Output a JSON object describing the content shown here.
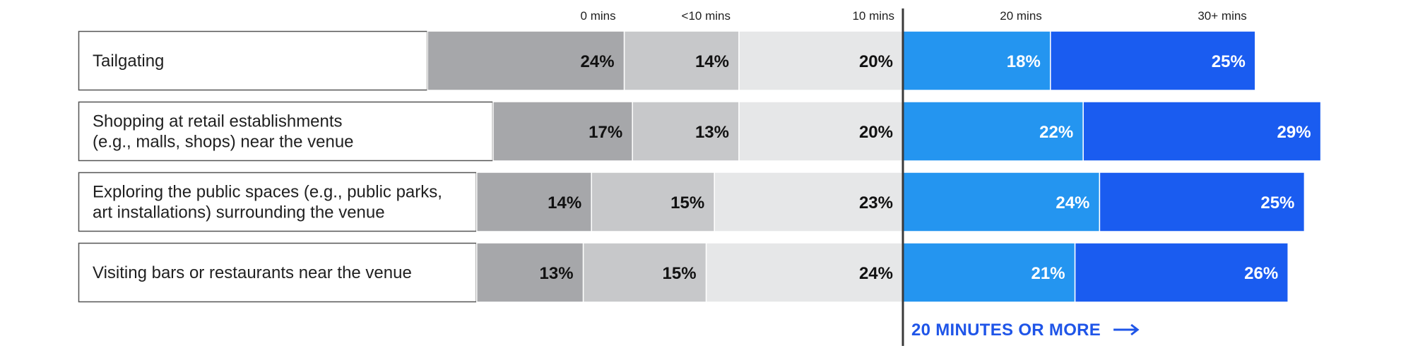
{
  "chart_data": {
    "type": "bar",
    "stacked": true,
    "orientation": "horizontal",
    "value_format": "percent",
    "tick_labels": [
      "0 mins",
      "<10 mins",
      "10 mins",
      "20 mins",
      "30+ mins"
    ],
    "categories": [
      "Tailgating",
      "Shopping at retail establishments\n(e.g., malls, shops) near the venue",
      "Exploring the public spaces (e.g., public parks,\nart installations) surrounding the venue",
      "Visiting bars or restaurants near the venue"
    ],
    "series": [
      {
        "values": [
          24,
          17,
          14,
          13
        ],
        "color": "#a6a7aa",
        "text_color": "#111111"
      },
      {
        "values": [
          14,
          13,
          15,
          15
        ],
        "color": "#c7c8ca",
        "text_color": "#111111"
      },
      {
        "values": [
          20,
          20,
          23,
          24
        ],
        "color": "#e6e7e8",
        "text_color": "#111111"
      },
      {
        "values": [
          18,
          22,
          24,
          21
        ],
        "color": "#2495f0",
        "text_color": "#ffffff"
      },
      {
        "values": [
          25,
          29,
          25,
          26
        ],
        "color": "#1a5cf0",
        "text_color": "#ffffff"
      }
    ],
    "annotation": "20 MINUTES OR MORE",
    "annotation_color": "#1f55e8",
    "divider_color": "#3a3a3a",
    "label_box_border": "#555555"
  }
}
